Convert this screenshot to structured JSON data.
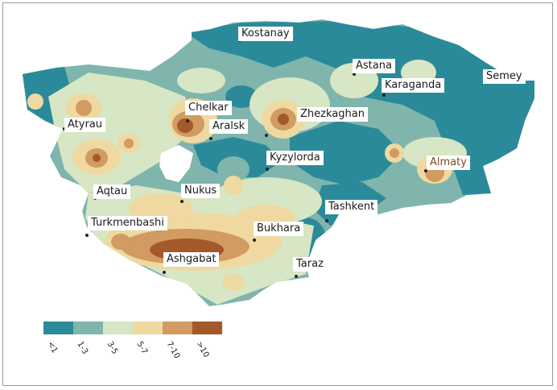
{
  "map": {
    "colors": {
      "c1": "#2b8a99",
      "c2": "#7fb5ad",
      "c3": "#d7e6c4",
      "c4": "#efd9a0",
      "c5": "#d19b62",
      "c6": "#a3592a"
    },
    "cities": [
      {
        "name": "Kostanay"
      },
      {
        "name": "Astana"
      },
      {
        "name": "Karaganda"
      },
      {
        "name": "Semey"
      },
      {
        "name": "Chelkar"
      },
      {
        "name": "Aralsk"
      },
      {
        "name": "Zhezkaghan"
      },
      {
        "name": "Atyrau"
      },
      {
        "name": "Kyzylorda"
      },
      {
        "name": "Almaty"
      },
      {
        "name": "Aqtau"
      },
      {
        "name": "Nukus"
      },
      {
        "name": "Tashkent"
      },
      {
        "name": "Turkmenbashi"
      },
      {
        "name": "Bukhara"
      },
      {
        "name": "Ashgabat"
      },
      {
        "name": "Taraz"
      }
    ]
  },
  "legend": {
    "items": [
      {
        "label": "<1",
        "color": "#2b8a99"
      },
      {
        "label": "1-3",
        "color": "#7fb5ad"
      },
      {
        "label": "3-5",
        "color": "#d7e6c4"
      },
      {
        "label": "5-7",
        "color": "#efd9a0"
      },
      {
        "label": "7-10",
        "color": "#d19b62"
      },
      {
        "label": ">10",
        "color": "#a3592a"
      }
    ]
  }
}
